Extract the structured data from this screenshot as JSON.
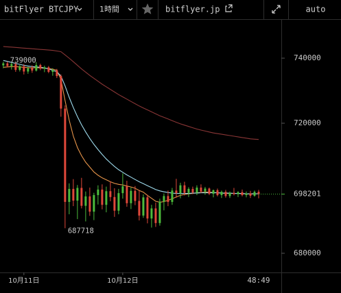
{
  "toolbar": {
    "market": "bitFlyer BTCJPY",
    "interval": "1時間",
    "site": "bitflyer.jp",
    "scale": "auto"
  },
  "chart_data": {
    "type": "candlestick",
    "up_color": "#4cbb3c",
    "down_color": "#e0483a",
    "candles": {
      "open": [
        737800,
        738400,
        737600,
        738200,
        736400,
        737500,
        735900,
        736900,
        736200,
        737900,
        736800,
        737200,
        735800,
        736300,
        734500,
        724500,
        695800,
        699800,
        696200,
        700100,
        694600,
        697500,
        692800,
        697900,
        699600,
        694900,
        699100,
        697300,
        693100,
        698500,
        700600,
        695400,
        699200,
        696100,
        691600,
        697200,
        690700,
        693800,
        689300,
        695900,
        697600,
        695800,
        699300,
        698500,
        700900,
        698600,
        699800,
        698700,
        700200,
        699000,
        699900,
        698300,
        699400,
        697900,
        698900,
        697600,
        698600,
        698200,
        698800,
        697900,
        698400,
        697700,
        698900
      ],
      "high": [
        738900,
        739000,
        738600,
        738700,
        737900,
        738200,
        737400,
        737800,
        738799,
        738300,
        737700,
        737600,
        736900,
        736700,
        735000,
        725500,
        701500,
        702800,
        701000,
        703200,
        699000,
        700200,
        698600,
        700900,
        701200,
        700500,
        702100,
        700000,
        699800,
        704600,
        702300,
        700200,
        700700,
        699500,
        698100,
        698000,
        694900,
        695600,
        696800,
        698400,
        699300,
        700100,
        702900,
        701700,
        702000,
        700300,
        700500,
        700900,
        701200,
        700400,
        700200,
        699600,
        699900,
        699300,
        699500,
        699000,
        700100,
        699100,
        699600,
        699000,
        699200,
        699300,
        699500
      ],
      "low": [
        736900,
        737200,
        736500,
        735800,
        735900,
        735000,
        735200,
        735500,
        735900,
        736300,
        735700,
        735400,
        734600,
        733900,
        722000,
        687718,
        692000,
        694500,
        690500,
        693800,
        689800,
        691500,
        690200,
        695000,
        693500,
        692600,
        696000,
        691200,
        692000,
        696800,
        694300,
        693600,
        694800,
        690100,
        690900,
        689200,
        687900,
        688100,
        688500,
        693200,
        694500,
        694900,
        697100,
        696900,
        697800,
        697300,
        698200,
        697900,
        698500,
        698000,
        697900,
        697200,
        697500,
        697000,
        697100,
        697000,
        697800,
        697300,
        697500,
        697200,
        697000,
        697400,
        696900
      ],
      "close": [
        738400,
        737600,
        738200,
        736400,
        737500,
        735900,
        736900,
        736200,
        737900,
        736800,
        737200,
        735800,
        736300,
        734500,
        724500,
        695800,
        699800,
        696200,
        700100,
        694600,
        697500,
        692800,
        697900,
        699600,
        694900,
        699100,
        697300,
        693100,
        698500,
        700600,
        695400,
        699200,
        696100,
        691600,
        697200,
        690700,
        693800,
        689300,
        695900,
        697600,
        695800,
        699300,
        698500,
        700900,
        698600,
        699800,
        698700,
        700200,
        699000,
        699900,
        698300,
        699400,
        697900,
        698900,
        697600,
        698600,
        698200,
        698800,
        697900,
        698400,
        697700,
        698900,
        698201
      ]
    },
    "moving_averages": [
      {
        "color": "#e8954a",
        "values": [
          737200,
          737300,
          737400,
          737400,
          737300,
          737200,
          737100,
          737000,
          737100,
          737000,
          736900,
          736800,
          736600,
          736300,
          733500,
          727000,
          721000,
          716000,
          712500,
          710000,
          708000,
          706500,
          705000,
          704000,
          703200,
          702600,
          702000,
          701500,
          701200,
          701000,
          700700,
          700400,
          700000,
          699300,
          698800,
          697800,
          696900,
          696000,
          695700,
          695900,
          696300,
          696800,
          697300,
          697800,
          698100,
          698300,
          698400,
          698600,
          698700,
          698800,
          698800,
          698700,
          698600,
          698500,
          698400,
          698400,
          698400,
          698400,
          698300,
          698300,
          698200,
          698300,
          698300
        ]
      },
      {
        "color": "#9fdcee",
        "values": [
          739300,
          739000,
          738700,
          738400,
          738100,
          737800,
          737600,
          737400,
          737300,
          737200,
          737000,
          736700,
          736300,
          735800,
          734500,
          731500,
          728000,
          724800,
          722000,
          719500,
          717300,
          715300,
          713500,
          711900,
          710400,
          709000,
          707800,
          706700,
          705700,
          704900,
          704100,
          703400,
          702700,
          702000,
          701400,
          700800,
          700200,
          699600,
          699200,
          698900,
          698700,
          698500,
          698400,
          698400,
          698400,
          698400,
          698500,
          698500,
          698600,
          698600,
          698600,
          698600,
          698600,
          698500,
          698500,
          698500,
          698400,
          698400,
          698400,
          698300,
          698300,
          698300,
          698300
        ]
      },
      {
        "color": "#8a3636",
        "values": [
          743600,
          743500,
          743400,
          743300,
          743200,
          743100,
          743000,
          742900,
          742800,
          742700,
          742600,
          742500,
          742400,
          742200,
          742000,
          741000,
          740000,
          738900,
          737800,
          736700,
          735700,
          734700,
          733800,
          732900,
          732000,
          731200,
          730400,
          729600,
          728800,
          728100,
          727400,
          726700,
          726000,
          725300,
          724700,
          724100,
          723500,
          722900,
          722300,
          721800,
          721300,
          720800,
          720300,
          719800,
          719400,
          719000,
          718600,
          718200,
          717900,
          717600,
          717300,
          717000,
          716800,
          716600,
          716400,
          716200,
          716000,
          715800,
          715600,
          715400,
          715200,
          715100,
          715000
        ]
      }
    ],
    "ylim": [
      674100,
      752000
    ],
    "yticks": [
      680000,
      720000,
      740000
    ],
    "xlim": [
      -0.8,
      67.5
    ],
    "xticks": [
      {
        "value": 5,
        "label": "10月11日"
      },
      {
        "value": 29,
        "label": "10月12日"
      }
    ],
    "last_price": 698201,
    "last_price_color": "#4cbb3c",
    "countdown": "48:49"
  }
}
